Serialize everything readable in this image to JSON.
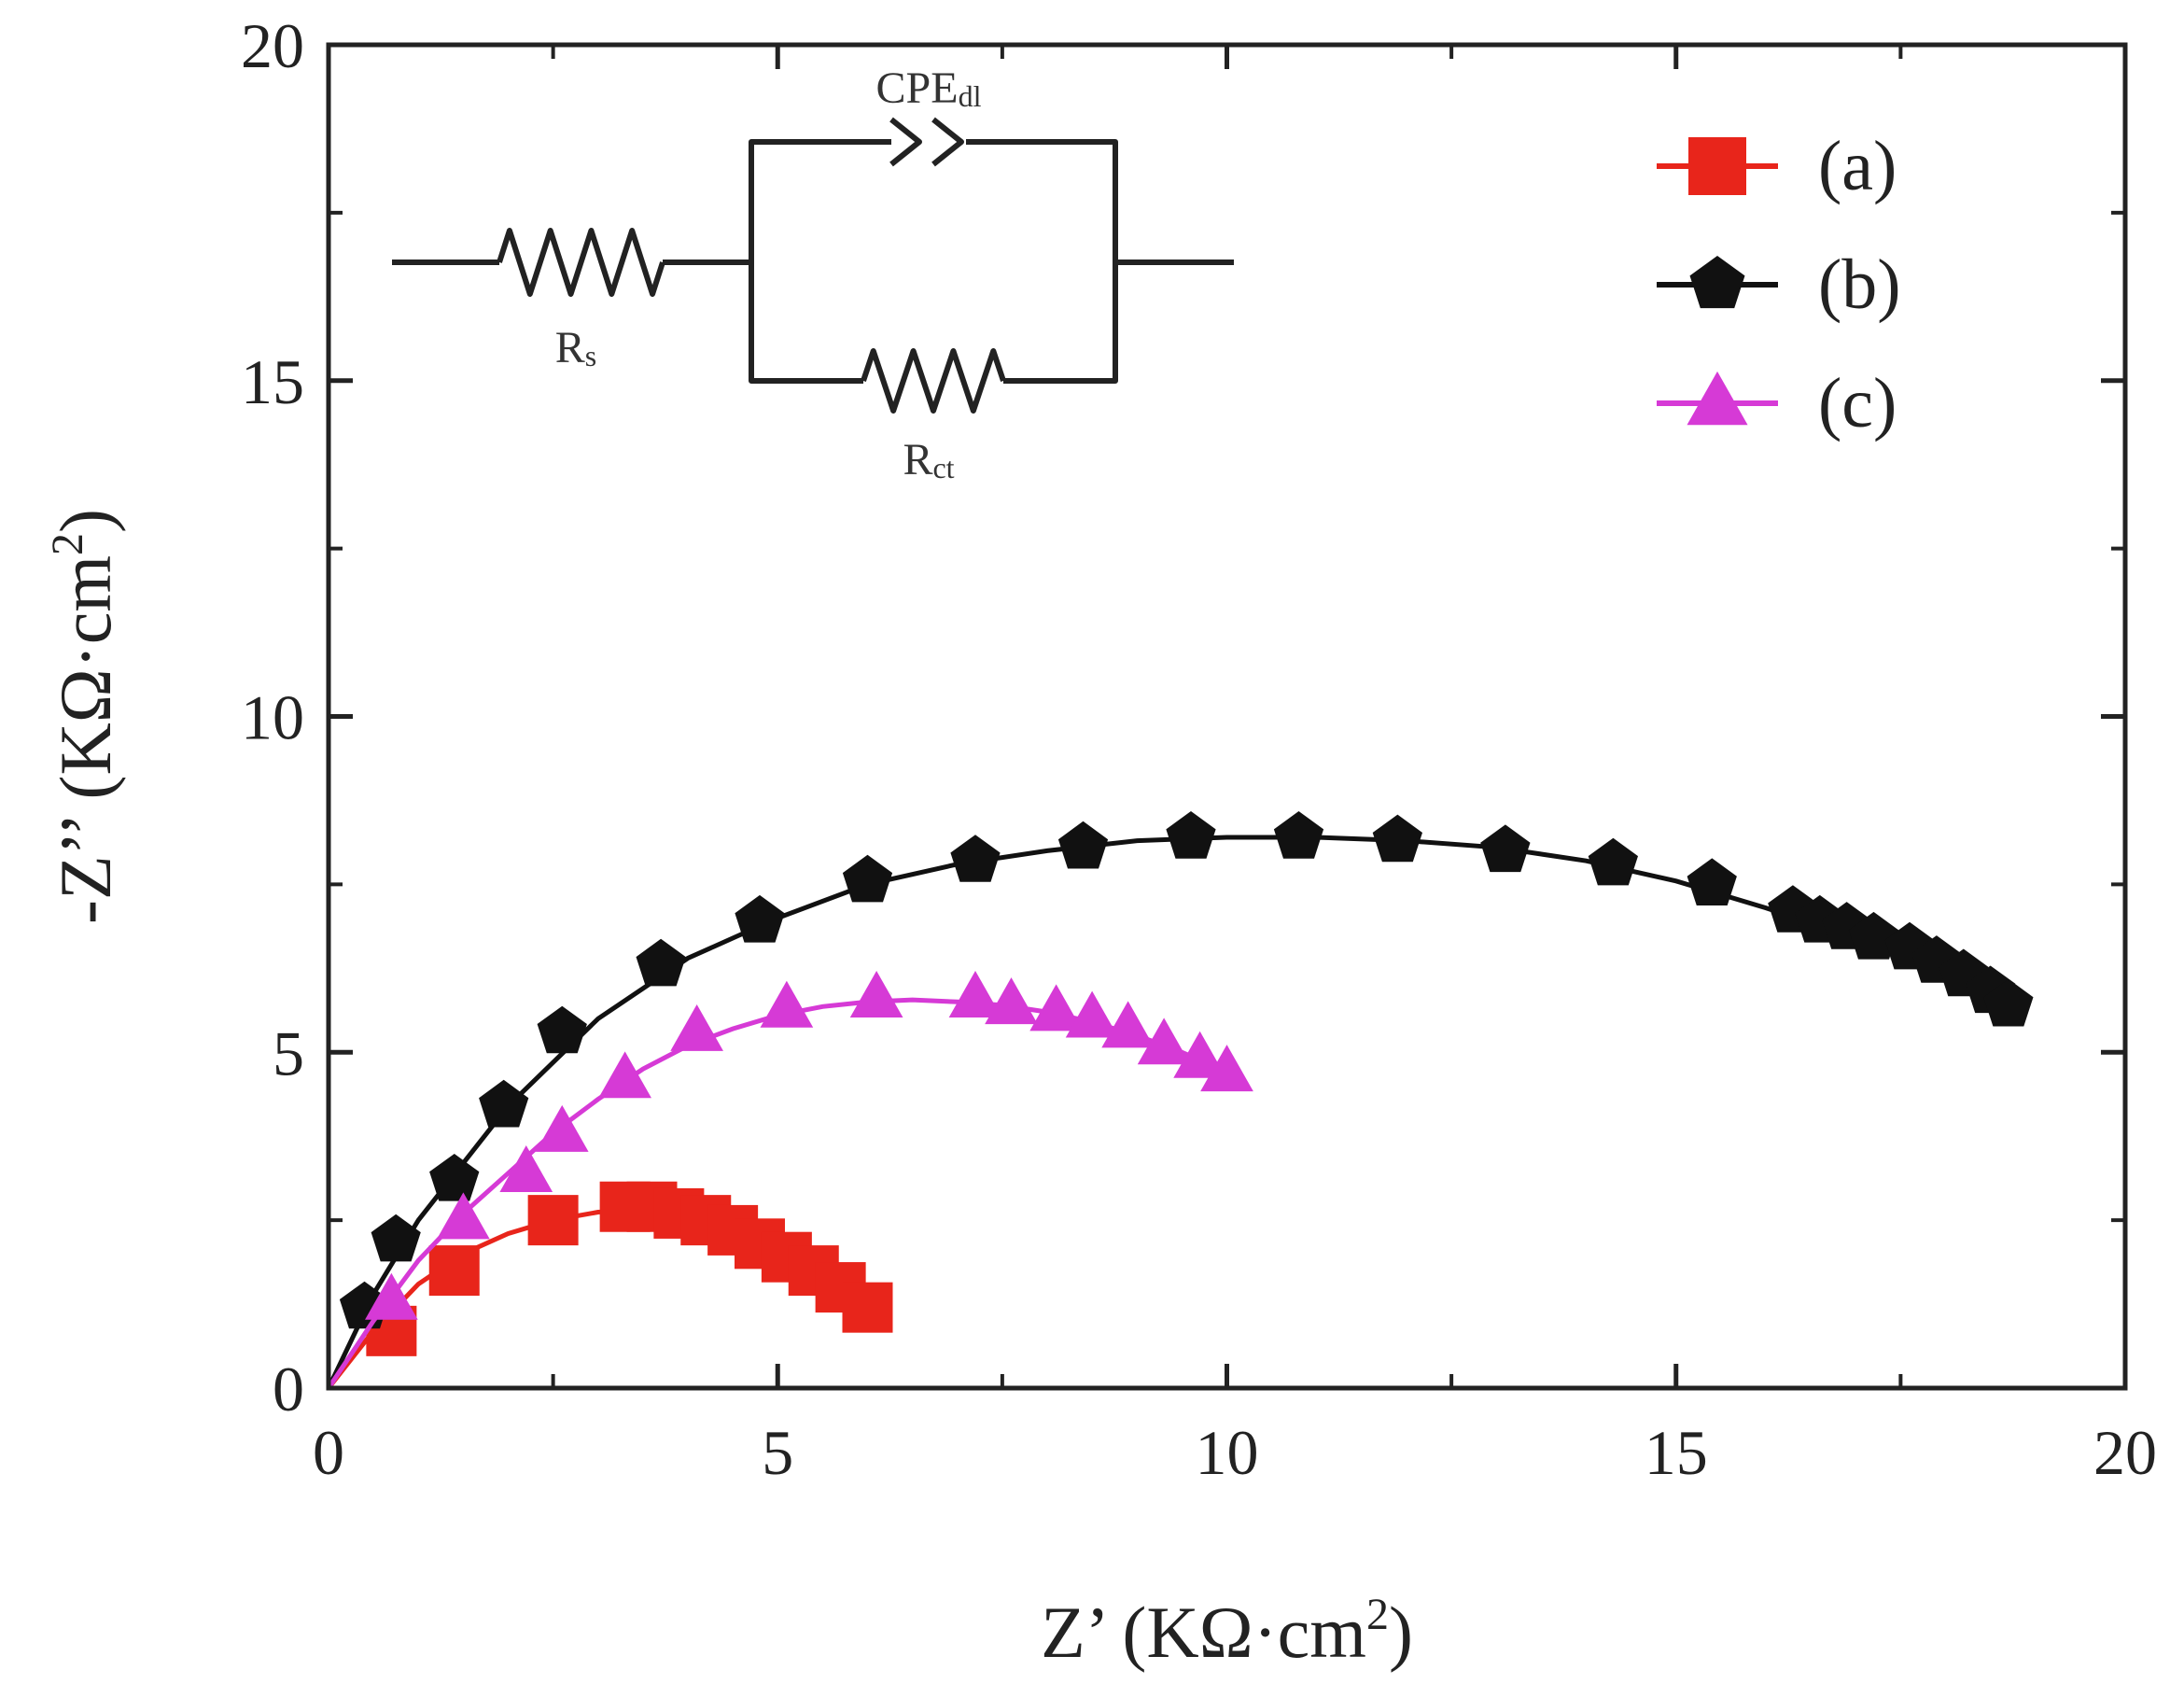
{
  "chart_data": {
    "type": "scatter",
    "title": "",
    "xlabel": "Z’ (KΩ·cm",
    "xlabel_sup": "2",
    "xlabel_end": ")",
    "ylabel": "-Z’’ (KΩ·cm",
    "ylabel_sup": "2",
    "ylabel_end": ")",
    "xlim": [
      0,
      20
    ],
    "ylim": [
      0,
      20
    ],
    "xticks": [
      0,
      5,
      10,
      15,
      20
    ],
    "yticks": [
      0,
      5,
      10,
      15,
      20
    ],
    "xtick_labels": [
      "0",
      "5",
      "10",
      "15",
      "20"
    ],
    "ytick_labels": [
      "0",
      "5",
      "10",
      "15",
      "20"
    ],
    "legend_position": "top-right",
    "series": [
      {
        "name": "(a)",
        "color": "#e8251b",
        "marker": "square",
        "x": [
          0.7,
          1.4,
          2.5,
          3.3,
          3.6,
          3.9,
          4.2,
          4.5,
          4.8,
          5.1,
          5.4,
          5.7,
          6.0
        ],
        "y": [
          0.85,
          1.75,
          2.5,
          2.7,
          2.7,
          2.6,
          2.5,
          2.35,
          2.15,
          1.95,
          1.75,
          1.5,
          1.2
        ],
        "fit_x": [
          0.0,
          0.5,
          1.0,
          1.5,
          2.0,
          2.5,
          3.0,
          3.5,
          4.0,
          4.5,
          5.0,
          5.5,
          6.0
        ],
        "fit_y": [
          0.0,
          0.85,
          1.55,
          2.0,
          2.3,
          2.5,
          2.62,
          2.65,
          2.6,
          2.4,
          2.1,
          1.7,
          1.2
        ]
      },
      {
        "name": "(b)",
        "color": "#111111",
        "marker": "pentagon",
        "x": [
          0.4,
          0.75,
          1.4,
          1.95,
          2.6,
          3.7,
          4.8,
          6.0,
          7.2,
          8.4,
          9.6,
          10.8,
          11.9,
          13.1,
          14.3,
          15.4,
          16.3,
          16.6,
          16.9,
          17.2,
          17.6,
          17.9,
          18.2,
          18.5,
          18.7
        ],
        "y": [
          1.2,
          2.2,
          3.1,
          4.2,
          5.3,
          6.3,
          6.95,
          7.55,
          7.85,
          8.05,
          8.2,
          8.2,
          8.15,
          8.0,
          7.8,
          7.5,
          7.1,
          6.95,
          6.85,
          6.7,
          6.55,
          6.35,
          6.15,
          5.9,
          5.7
        ],
        "fit_x": [
          0.0,
          0.5,
          1.0,
          2.0,
          3.0,
          4.0,
          5.0,
          6.0,
          7.0,
          8.0,
          9.0,
          10.0,
          11.0,
          12.0,
          13.0,
          14.0,
          15.0,
          16.0,
          17.0,
          18.0,
          18.8
        ],
        "fit_y": [
          0.0,
          1.4,
          2.5,
          4.2,
          5.5,
          6.4,
          7.0,
          7.5,
          7.8,
          8.0,
          8.15,
          8.2,
          8.2,
          8.15,
          8.05,
          7.85,
          7.55,
          7.15,
          6.7,
          6.2,
          5.75
        ]
      },
      {
        "name": "(c)",
        "color": "#d63ad6",
        "marker": "triangle",
        "x": [
          0.7,
          1.5,
          2.2,
          2.6,
          3.3,
          4.1,
          5.1,
          6.1,
          7.2,
          7.6,
          8.1,
          8.5,
          8.9,
          9.3,
          9.7,
          10.0
        ],
        "y": [
          1.3,
          2.5,
          3.2,
          3.8,
          4.6,
          5.3,
          5.65,
          5.8,
          5.8,
          5.7,
          5.6,
          5.5,
          5.35,
          5.1,
          4.9,
          4.7
        ],
        "fit_x": [
          0.0,
          0.5,
          1.0,
          1.5,
          2.0,
          2.5,
          3.0,
          3.5,
          4.0,
          4.5,
          5.0,
          5.5,
          6.0,
          6.5,
          7.0,
          7.5,
          8.0,
          8.5,
          9.0,
          9.5,
          10.0
        ],
        "fit_y": [
          0.0,
          1.0,
          1.9,
          2.6,
          3.2,
          3.8,
          4.3,
          4.75,
          5.1,
          5.35,
          5.55,
          5.68,
          5.75,
          5.78,
          5.75,
          5.7,
          5.6,
          5.45,
          5.25,
          5.0,
          4.7
        ]
      }
    ],
    "inset_circuit": {
      "cpe_label": "CPE",
      "cpe_sub": "dl",
      "rs_label": "R",
      "rs_sub": "s",
      "rct_label": "R",
      "rct_sub": "ct"
    }
  }
}
